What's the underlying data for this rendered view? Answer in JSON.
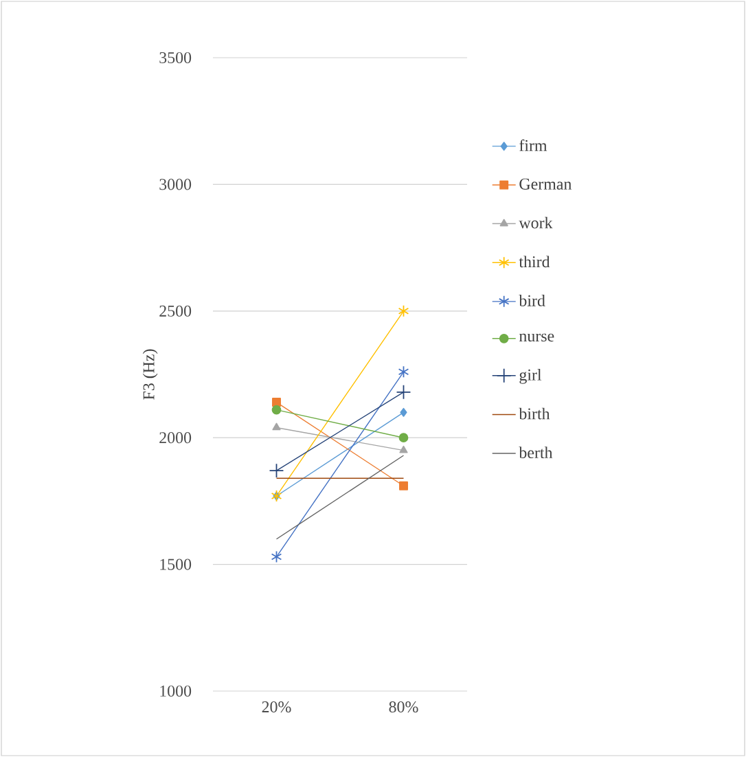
{
  "chart_data": {
    "type": "line",
    "ylabel": "F3 (Hz)",
    "categories": [
      "20%",
      "80%"
    ],
    "ylim": [
      1000,
      3500
    ],
    "yticks": [
      1000,
      1500,
      2000,
      2500,
      3000,
      3500
    ],
    "grid": "y",
    "legend": "right",
    "series": [
      {
        "name": "firm",
        "color": "#5b9bd5",
        "marker": "diamond",
        "values": [
          1770,
          2100
        ]
      },
      {
        "name": "German",
        "color": "#ed7d31",
        "marker": "square",
        "values": [
          2140,
          1810
        ]
      },
      {
        "name": "work",
        "color": "#a5a5a5",
        "marker": "triangle",
        "values": [
          2040,
          1950
        ]
      },
      {
        "name": "third",
        "color": "#ffc000",
        "marker": "cross",
        "values": [
          1770,
          2500
        ]
      },
      {
        "name": "bird",
        "color": "#4472c4",
        "marker": "cross",
        "values": [
          1530,
          2260
        ]
      },
      {
        "name": "nurse",
        "color": "#70ad47",
        "marker": "circle",
        "values": [
          2110,
          2000
        ]
      },
      {
        "name": "girl",
        "color": "#264478",
        "marker": "plus",
        "values": [
          1870,
          2180
        ]
      },
      {
        "name": "birth",
        "color": "#9e480e",
        "marker": "none",
        "values": [
          1840,
          1840
        ]
      },
      {
        "name": "berth",
        "color": "#636363",
        "marker": "none",
        "values": [
          1600,
          1930
        ]
      }
    ]
  }
}
